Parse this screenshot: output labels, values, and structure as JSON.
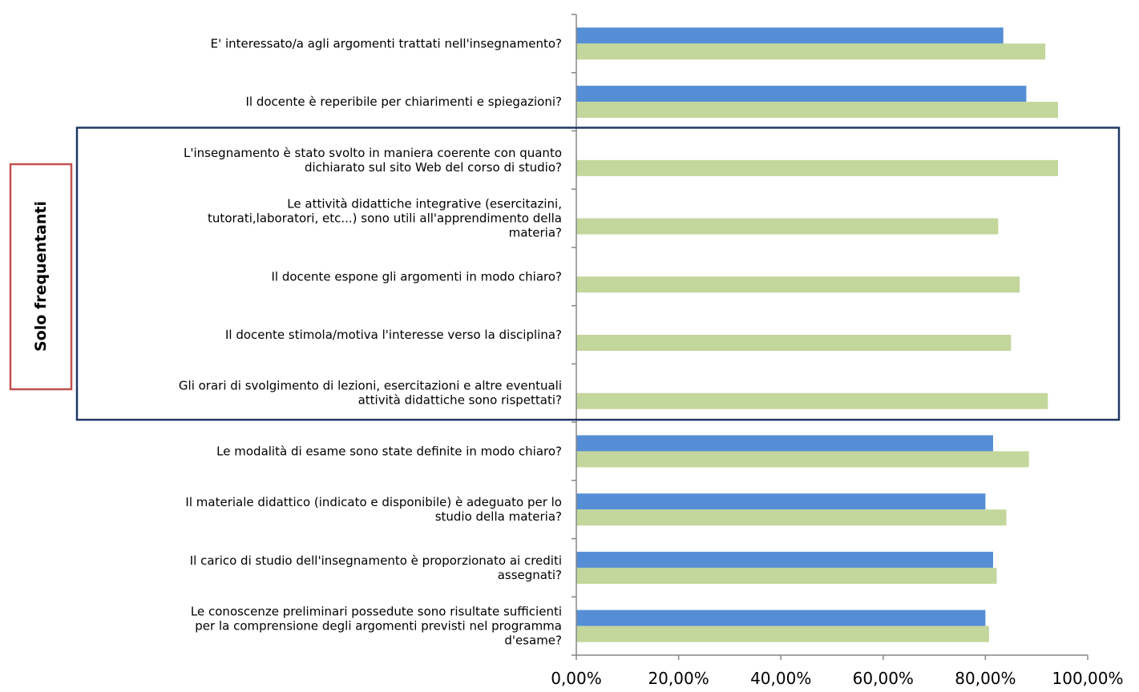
{
  "chart_data": {
    "type": "bar",
    "orientation": "horizontal",
    "categories": [
      "E' interessato/a agli argomenti trattati nell'insegnamento?",
      "Il docente è reperibile per chiarimenti e spiegazioni?",
      "L'insegnamento è stato svolto in maniera coerente con quanto dichiarato sul sito Web del corso di studio?",
      "Le attività didattiche integrative (esercitazini, tutorati,laboratori, etc...) sono utili all'apprendimento della materia?",
      "Il docente espone gli argomenti in modo chiaro?",
      "Il docente stimola/motiva l'interesse verso la disciplina?",
      "Gli orari di svolgimento di lezioni, esercitazioni e altre eventuali attività didattiche sono rispettati?",
      "Le modalità di esame sono state definite in modo chiaro?",
      "Il materiale didattico (indicato e disponibile) è adeguato per lo studio della materia?",
      "Il carico di studio dell'insegnamento è proporzionato ai crediti assegnati?",
      "Le conoscenze preliminari possedute sono risultate sufficienti per la comprensione degli argomenti previsti nel programma d'esame?"
    ],
    "category_lines": [
      [
        "E' interessato/a agli argomenti trattati nell'insegnamento?"
      ],
      [
        "Il docente è reperibile per chiarimenti e spiegazioni?"
      ],
      [
        "L'insegnamento è stato svolto in maniera coerente con quanto",
        "dichiarato sul sito Web del corso di studio?"
      ],
      [
        "Le attività didattiche integrative (esercitazini,",
        "tutorati,laboratori, etc...) sono utili all'apprendimento della",
        "materia?"
      ],
      [
        "Il docente espone gli argomenti in modo chiaro?"
      ],
      [
        "Il docente stimola/motiva l'interesse verso la disciplina?"
      ],
      [
        "Gli orari di svolgimento di lezioni, esercitazioni e altre eventuali",
        "attività didattiche sono rispettati?"
      ],
      [
        "Le modalità di esame sono state definite in modo chiaro?"
      ],
      [
        "Il materiale didattico (indicato e disponibile) è adeguato per lo",
        "studio della materia?"
      ],
      [
        "Il carico di studio dell'insegnamento è proporzionato ai crediti",
        "assegnati?"
      ],
      [
        "Le conoscenze preliminari possedute sono risultate sufficienti",
        "per la comprensione degli argomenti previsti nel programma",
        "d'esame?"
      ]
    ],
    "series": [
      {
        "color": "#558ed5",
        "values": [
          83.5,
          88.0,
          null,
          null,
          null,
          null,
          null,
          81.5,
          80.0,
          81.5,
          80.0
        ]
      },
      {
        "color": "#c3d69b",
        "values": [
          91.7,
          94.2,
          94.2,
          82.5,
          86.7,
          85.0,
          92.2,
          88.5,
          84.1,
          82.2,
          80.7
        ]
      }
    ],
    "xlim": [
      0,
      100
    ],
    "xticks": [
      0,
      20,
      40,
      60,
      80,
      100
    ],
    "xtick_labels": [
      "0,00%",
      "20,00%",
      "40,00%",
      "60,00%",
      "80,00%",
      "100,00%"
    ],
    "xlabel": "",
    "ylabel": "",
    "title": "",
    "grid": false,
    "legend": "none",
    "annotations": {
      "side_label": "Solo frequentanti",
      "side_box_color": "#c0504d",
      "group_box_color": "#1f3864",
      "group_box_categories": [
        2,
        6
      ]
    }
  }
}
